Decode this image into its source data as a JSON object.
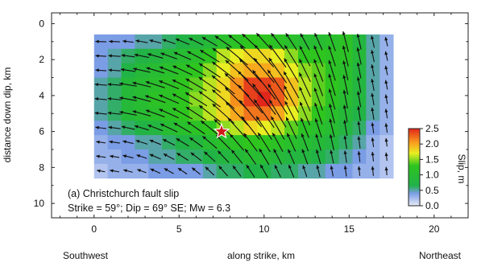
{
  "chart_data": {
    "type": "heatmap",
    "title": "",
    "xlabel": "along strike, km",
    "ylabel": "distance down dip, km",
    "x_end_labels": {
      "left": "Southwest",
      "right": "Northeast"
    },
    "xlim": [
      -2.5,
      22
    ],
    "ylim": [
      -0.6,
      10.8
    ],
    "y_inverted": true,
    "xticks": [
      0,
      5,
      10,
      15,
      20
    ],
    "yticks": [
      0,
      2,
      4,
      6,
      8,
      10
    ],
    "grid": false,
    "cell_size_km": 0.8,
    "grid_x0": 0,
    "grid_y0": 0.6,
    "ncols": 22,
    "nrows": 10,
    "slip": [
      [
        0.4,
        0.4,
        0.4,
        0.5,
        0.5,
        0.6,
        0.7,
        0.8,
        0.9,
        1.1,
        1.2,
        1.3,
        1.3,
        1.2,
        1.1,
        1.0,
        1.0,
        1.1,
        1.2,
        0.8,
        0.5,
        0.3
      ],
      [
        0.4,
        0.5,
        0.6,
        0.7,
        0.8,
        0.9,
        1.0,
        1.1,
        1.3,
        1.6,
        1.7,
        1.8,
        1.8,
        1.7,
        1.5,
        1.3,
        1.3,
        1.2,
        1.2,
        0.9,
        0.5,
        0.3
      ],
      [
        0.4,
        0.5,
        0.7,
        0.9,
        1.0,
        1.1,
        1.2,
        1.3,
        1.5,
        1.7,
        1.9,
        2.0,
        2.0,
        1.9,
        1.7,
        1.5,
        1.4,
        1.2,
        1.1,
        0.8,
        0.5,
        0.3
      ],
      [
        0.5,
        0.6,
        0.9,
        1.0,
        1.1,
        1.2,
        1.3,
        1.4,
        1.6,
        1.8,
        2.1,
        2.4,
        2.4,
        2.3,
        1.9,
        1.6,
        1.4,
        1.3,
        1.1,
        0.8,
        0.5,
        0.3
      ],
      [
        0.5,
        0.6,
        0.9,
        1.0,
        1.2,
        1.2,
        1.3,
        1.5,
        1.6,
        1.8,
        2.1,
        2.4,
        2.5,
        2.3,
        1.9,
        1.6,
        1.4,
        1.2,
        1.0,
        0.8,
        0.5,
        0.3
      ],
      [
        0.5,
        0.6,
        0.9,
        1.0,
        1.1,
        1.2,
        1.3,
        1.4,
        1.6,
        1.8,
        2.0,
        2.2,
        2.2,
        2.0,
        1.7,
        1.5,
        1.3,
        1.1,
        0.9,
        0.7,
        0.5,
        0.3
      ],
      [
        0.4,
        0.5,
        0.6,
        0.7,
        0.8,
        1.0,
        1.1,
        1.2,
        1.3,
        1.5,
        1.6,
        1.8,
        1.7,
        1.6,
        1.4,
        1.2,
        1.1,
        1.0,
        0.8,
        0.6,
        0.4,
        0.3
      ],
      [
        0.3,
        0.4,
        0.4,
        0.5,
        0.5,
        0.6,
        0.7,
        0.8,
        1.0,
        1.1,
        1.2,
        1.3,
        1.3,
        1.2,
        1.1,
        1.0,
        0.9,
        0.8,
        0.6,
        0.5,
        0.3,
        0.2
      ],
      [
        0.3,
        0.3,
        0.4,
        0.4,
        0.5,
        0.5,
        0.6,
        0.6,
        0.7,
        0.8,
        0.9,
        1.0,
        1.0,
        0.9,
        0.8,
        0.8,
        0.7,
        0.6,
        0.5,
        0.4,
        0.3,
        0.2
      ],
      [
        0.2,
        0.3,
        0.3,
        0.3,
        0.4,
        0.4,
        0.4,
        0.4,
        0.5,
        0.6,
        0.6,
        0.7,
        0.7,
        0.6,
        0.6,
        0.5,
        0.5,
        0.4,
        0.4,
        0.3,
        0.3,
        0.2
      ]
    ],
    "hypocenter": {
      "x": 7.5,
      "y": 6.0
    },
    "colorbar": {
      "label": "Slip, m",
      "range": [
        0,
        2.5
      ],
      "ticks": [
        0.0,
        0.5,
        1.0,
        1.5,
        2.0,
        2.5
      ],
      "tick_labels": [
        "0.0",
        "0.5",
        "1.0",
        "1.5",
        "2.0",
        "2.5"
      ],
      "stops": [
        {
          "value": 0.0,
          "color": "#e8ebf7"
        },
        {
          "value": 0.4,
          "color": "#7b9de6"
        },
        {
          "value": 0.65,
          "color": "#21b24a"
        },
        {
          "value": 1.3,
          "color": "#2ec51f"
        },
        {
          "value": 1.7,
          "color": "#e9ee22"
        },
        {
          "value": 2.05,
          "color": "#f99d1d"
        },
        {
          "value": 2.5,
          "color": "#e1261c"
        }
      ]
    },
    "caption": {
      "line1": "(a) Christchurch fault slip",
      "line2": "Strike = 59°; Dip = 69° SE; Mw = 6.3"
    }
  }
}
